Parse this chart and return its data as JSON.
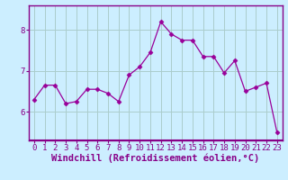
{
  "x": [
    0,
    1,
    2,
    3,
    4,
    5,
    6,
    7,
    8,
    9,
    10,
    11,
    12,
    13,
    14,
    15,
    16,
    17,
    18,
    19,
    20,
    21,
    22,
    23
  ],
  "y": [
    6.3,
    6.65,
    6.65,
    6.2,
    6.25,
    6.55,
    6.55,
    6.45,
    6.25,
    6.9,
    7.1,
    7.45,
    8.2,
    7.9,
    7.75,
    7.75,
    7.35,
    7.35,
    6.95,
    7.25,
    6.5,
    6.6,
    6.7,
    5.5
  ],
  "line_color": "#990099",
  "marker": "D",
  "marker_size": 2.5,
  "bg_color": "#cceeff",
  "grid_color": "#aacccc",
  "xlabel": "Windchill (Refroidissement éolien,°C)",
  "ylim": [
    5.3,
    8.6
  ],
  "yticks": [
    6,
    7,
    8
  ],
  "xticks": [
    0,
    1,
    2,
    3,
    4,
    5,
    6,
    7,
    8,
    9,
    10,
    11,
    12,
    13,
    14,
    15,
    16,
    17,
    18,
    19,
    20,
    21,
    22,
    23
  ],
  "tick_label_fontsize": 6.5,
  "xlabel_fontsize": 7.5,
  "axis_color": "#880088",
  "spine_color": "#880088"
}
